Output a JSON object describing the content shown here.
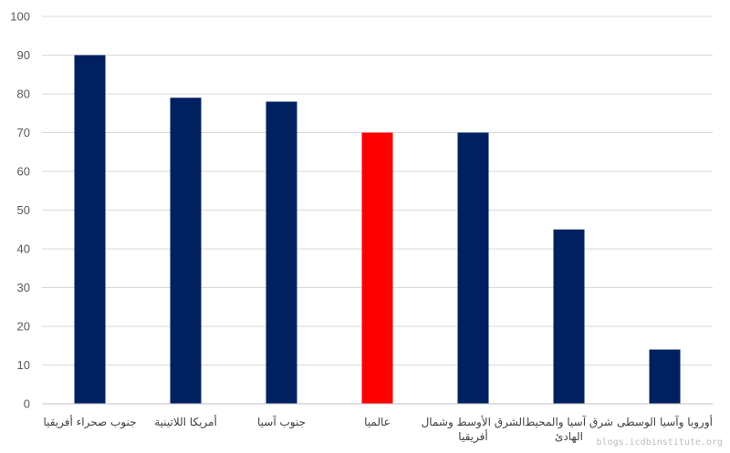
{
  "chart_data": {
    "type": "bar",
    "title": "",
    "xlabel": "",
    "ylabel": "",
    "ylim": [
      0,
      100
    ],
    "yticks": [
      0,
      10,
      20,
      30,
      40,
      50,
      60,
      70,
      80,
      90,
      100
    ],
    "grid": true,
    "categories": [
      [
        "جنوب صحراء أفريقيا"
      ],
      [
        "أمريكا اللاتينية"
      ],
      [
        "جنوب آسيا"
      ],
      [
        "عالميا"
      ],
      [
        "الشرق الأوسط وشمال",
        "أفريقيا"
      ],
      [
        "شرق آسيا والمحيط",
        "الهادئ"
      ],
      [
        "أوروبا وآسيا الوسطى"
      ]
    ],
    "values": [
      90,
      79,
      78,
      70,
      70,
      45,
      14
    ],
    "colors": [
      "#002060",
      "#002060",
      "#002060",
      "#ff0000",
      "#002060",
      "#002060",
      "#002060"
    ]
  },
  "watermark": "blogs.icdbinstitute.org"
}
